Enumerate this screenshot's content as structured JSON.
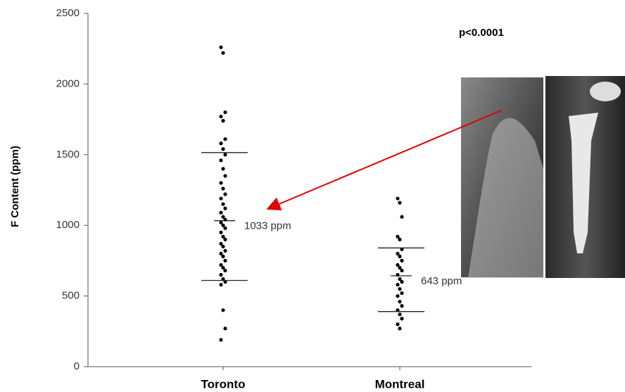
{
  "chart_data": {
    "type": "strip",
    "y_label": "F Content (ppm)",
    "annotation": "p<0.0001",
    "categories": [
      "Toronto",
      "Montreal"
    ],
    "series": [
      {
        "color": "#000000",
        "values": [
          2260,
          2220,
          1800,
          1770,
          1740,
          1610,
          1580,
          1540,
          1500,
          1460,
          1400,
          1350,
          1300,
          1260,
          1220,
          1190,
          1150,
          1120,
          1090,
          1060,
          1040,
          1020,
          1000,
          980,
          950,
          920,
          900,
          870,
          850,
          820,
          800,
          780,
          750,
          720,
          700,
          680,
          650,
          620,
          600,
          580,
          400,
          270,
          190
        ]
      },
      {
        "color": "#000000",
        "values": [
          1190,
          1160,
          1060,
          920,
          900,
          830,
          800,
          780,
          750,
          720,
          700,
          680,
          650,
          620,
          600,
          580,
          550,
          520,
          500,
          460,
          430,
          400,
          370,
          340,
          300,
          270
        ]
      }
    ],
    "mean_values": [
      1033,
      643
    ],
    "value_labels": [
      "1033 ppm",
      "643 ppm"
    ],
    "upper_values": [
      1515,
      840
    ],
    "lower_values": [
      610,
      390
    ],
    "ylim": [
      0,
      2500
    ],
    "yticks": [
      0,
      500,
      1000,
      1500,
      2000,
      2500
    ]
  }
}
